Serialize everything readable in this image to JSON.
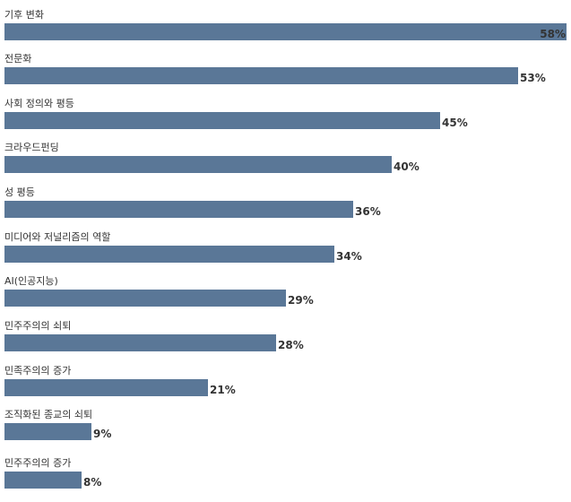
{
  "chart_data": {
    "type": "bar",
    "orientation": "horizontal",
    "categories": [
      "기후 변화",
      "전문화",
      "사회 정의와 평등",
      "크라우드펀딩",
      "성 평등",
      "미디어와 저널리즘의 역할",
      "AI(인공지능)",
      "민주주의의 쇠퇴",
      "민족주의의 증가",
      "조직화된 종교의 쇠퇴",
      "민주주의의 증가"
    ],
    "values": [
      58,
      53,
      45,
      40,
      36,
      34,
      29,
      28,
      21,
      9,
      8
    ],
    "value_labels": [
      "58%",
      "53%",
      "45%",
      "40%",
      "36%",
      "34%",
      "29%",
      "28%",
      "21%",
      "9%",
      "8%"
    ],
    "unit": "%",
    "xlim": [
      0,
      58
    ],
    "grid": false,
    "legend": "none",
    "colors": {
      "bar": "#5a7797",
      "text": "#333333"
    }
  }
}
